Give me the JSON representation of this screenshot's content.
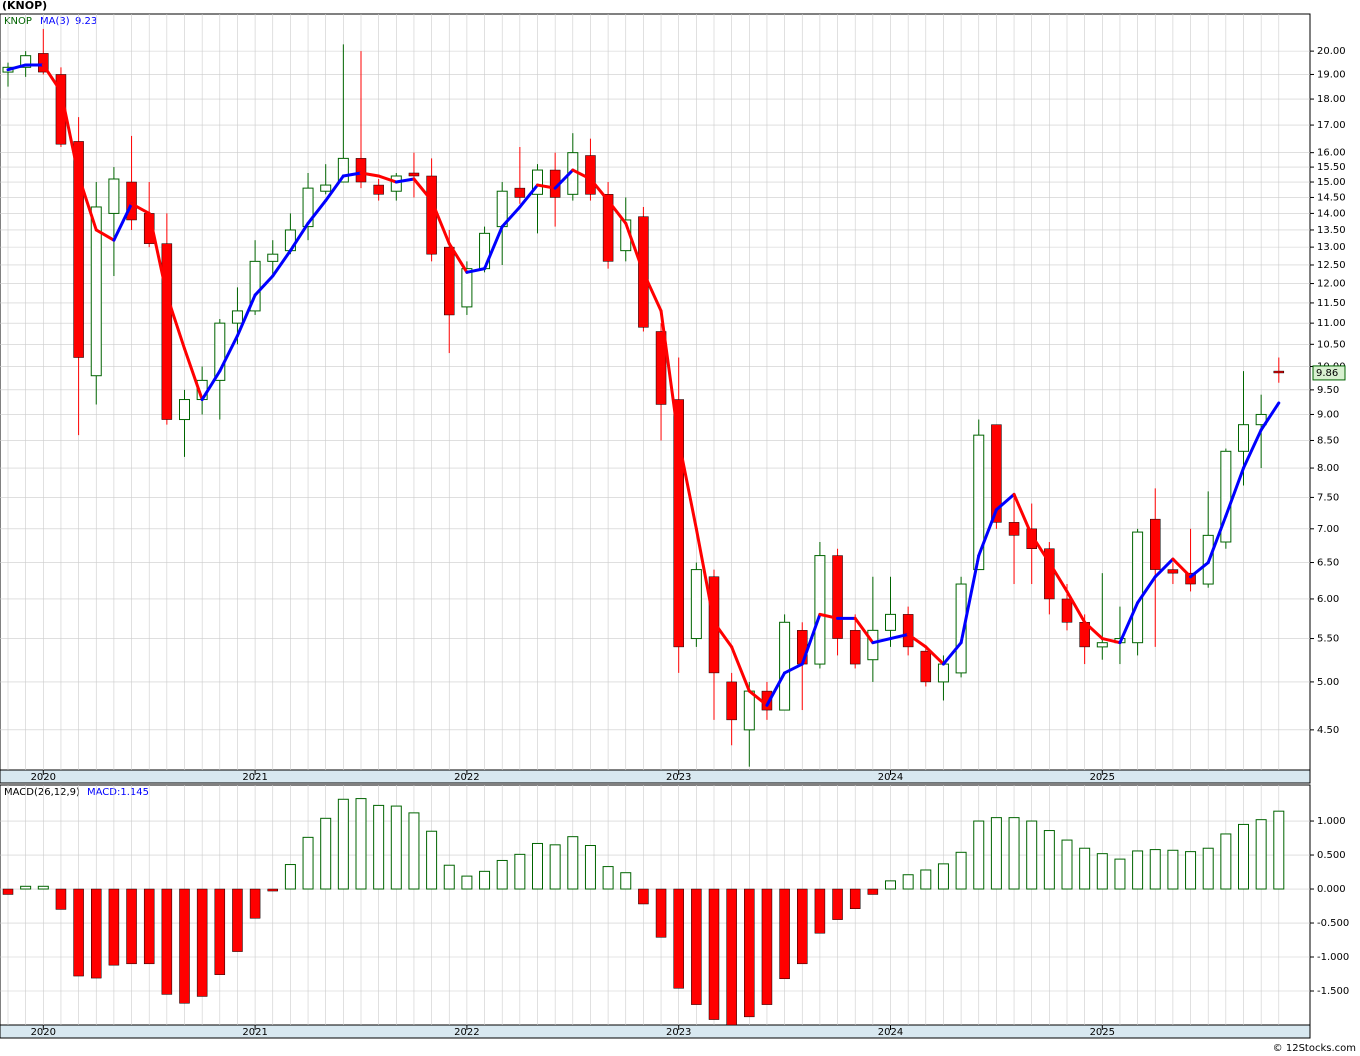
{
  "chart_data": [
    {
      "type": "candlestick",
      "title": "(KNOP)",
      "symbol": "KNOP",
      "ma_name": "MA(3)",
      "ma_value": 9.23,
      "last_price": 9.86,
      "categories": [
        null,
        null,
        "2020",
        null,
        null,
        null,
        null,
        null,
        null,
        null,
        null,
        null,
        null,
        null,
        "2021",
        null,
        null,
        null,
        null,
        null,
        null,
        null,
        null,
        null,
        null,
        null,
        "2022",
        null,
        null,
        null,
        null,
        null,
        null,
        null,
        null,
        null,
        null,
        null,
        "2023",
        null,
        null,
        null,
        null,
        null,
        null,
        null,
        null,
        null,
        null,
        null,
        "2024",
        null,
        null,
        null,
        null,
        null,
        null,
        null,
        null,
        null,
        null,
        null,
        "2025",
        null,
        null,
        null,
        null,
        null,
        null,
        null,
        null,
        null,
        null
      ],
      "open": [
        19.1,
        19.3,
        19.9,
        19.0,
        16.4,
        9.8,
        14.0,
        15.0,
        14.0,
        13.1,
        8.9,
        9.3,
        9.7,
        11.0,
        11.3,
        12.6,
        12.9,
        13.6,
        14.7,
        15.0,
        15.8,
        14.9,
        14.7,
        15.3,
        15.2,
        13.0,
        11.4,
        12.4,
        13.6,
        14.8,
        14.6,
        15.4,
        14.6,
        15.9,
        14.6,
        12.9,
        13.9,
        10.8,
        9.3,
        5.5,
        6.3,
        5.0,
        4.5,
        4.9,
        4.7,
        5.6,
        5.2,
        6.6,
        5.6,
        5.25,
        5.6,
        5.8,
        5.35,
        5.0,
        5.1,
        6.4,
        8.8,
        7.1,
        7.0,
        6.7,
        6.0,
        5.7,
        5.4,
        5.45,
        5.45,
        7.15,
        6.4,
        6.35,
        6.2,
        6.8,
        8.3,
        8.8,
        9.9
      ],
      "high": [
        19.5,
        20.0,
        21.0,
        19.3,
        17.3,
        15.0,
        15.5,
        16.6,
        15.0,
        14.0,
        9.5,
        10.0,
        11.1,
        11.9,
        13.2,
        13.2,
        14.0,
        15.3,
        15.6,
        20.3,
        20.0,
        15.1,
        15.3,
        16.0,
        15.8,
        13.5,
        12.6,
        13.6,
        15.0,
        16.2,
        15.6,
        16.0,
        16.7,
        16.5,
        15.0,
        14.5,
        14.2,
        11.0,
        10.2,
        6.5,
        6.4,
        5.1,
        5.0,
        5.0,
        5.8,
        5.7,
        6.8,
        6.7,
        5.8,
        6.3,
        6.3,
        5.9,
        5.4,
        5.3,
        6.3,
        8.9,
        8.8,
        7.5,
        7.4,
        6.8,
        6.2,
        5.8,
        6.35,
        5.9,
        7.0,
        7.65,
        6.5,
        7.0,
        7.6,
        8.35,
        9.9,
        9.4,
        10.2
      ],
      "low": [
        18.5,
        18.9,
        19.0,
        16.2,
        8.6,
        9.2,
        12.2,
        13.5,
        13.0,
        8.8,
        8.2,
        9.0,
        8.9,
        10.5,
        11.2,
        12.2,
        12.8,
        13.2,
        14.6,
        15.0,
        14.8,
        14.4,
        14.4,
        14.5,
        12.6,
        10.3,
        11.2,
        12.3,
        12.5,
        14.3,
        13.4,
        13.6,
        14.4,
        14.4,
        12.4,
        12.6,
        10.8,
        8.5,
        5.1,
        5.4,
        4.6,
        4.35,
        4.15,
        4.6,
        4.7,
        4.7,
        5.15,
        5.3,
        5.15,
        5.0,
        5.4,
        5.3,
        4.95,
        4.8,
        5.05,
        6.4,
        7.0,
        6.2,
        6.2,
        5.8,
        5.6,
        5.2,
        5.25,
        5.2,
        5.3,
        5.4,
        6.2,
        6.1,
        6.15,
        6.7,
        7.7,
        8.0,
        9.65
      ],
      "close": [
        19.3,
        19.8,
        19.1,
        16.3,
        10.2,
        14.2,
        15.1,
        13.8,
        13.1,
        8.9,
        9.3,
        9.7,
        11.0,
        11.3,
        12.6,
        12.8,
        13.5,
        14.8,
        14.9,
        15.8,
        15.0,
        14.6,
        15.2,
        15.2,
        12.8,
        11.2,
        12.4,
        13.4,
        14.7,
        14.5,
        15.4,
        14.5,
        16.0,
        14.6,
        12.6,
        13.8,
        10.9,
        9.2,
        5.4,
        6.4,
        5.1,
        4.6,
        4.9,
        4.7,
        5.7,
        5.2,
        6.6,
        5.5,
        5.2,
        5.6,
        5.8,
        5.4,
        5.0,
        5.2,
        6.2,
        8.6,
        7.1,
        6.9,
        6.7,
        6.0,
        5.7,
        5.4,
        5.45,
        5.5,
        6.95,
        6.4,
        6.35,
        6.2,
        6.9,
        8.3,
        8.8,
        9.0,
        9.86
      ],
      "ma": [
        19.2,
        19.4,
        19.4,
        18.3,
        15.2,
        13.5,
        13.2,
        14.3,
        14.0,
        11.7,
        10.4,
        9.3,
        9.9,
        10.7,
        11.7,
        12.2,
        12.9,
        13.7,
        14.4,
        15.2,
        15.3,
        15.2,
        15.0,
        15.1,
        14.4,
        13.1,
        12.3,
        12.4,
        13.6,
        14.2,
        14.9,
        14.8,
        15.4,
        15.1,
        14.4,
        13.7,
        12.3,
        11.3,
        8.5,
        7.0,
        5.7,
        5.4,
        4.9,
        4.75,
        5.1,
        5.2,
        5.8,
        5.75,
        5.75,
        5.45,
        5.5,
        5.55,
        5.4,
        5.2,
        5.45,
        6.6,
        7.3,
        7.55,
        6.9,
        6.5,
        6.1,
        5.7,
        5.5,
        5.45,
        5.95,
        6.3,
        6.55,
        6.3,
        6.5,
        7.2,
        8.0,
        8.7,
        9.23
      ],
      "up_color": "#006400",
      "down_color": "#ff0000",
      "ma_up_color": "#0000ff",
      "ma_down_color": "#ff0000",
      "log_scale": true,
      "grid": true,
      "ylim": [
        4.12,
        21.7
      ],
      "yticks": [
        {
          "value": 4.5,
          "label": "4.50"
        },
        {
          "value": 5,
          "label": "5.00"
        },
        {
          "value": 5.5,
          "label": "5.50"
        },
        {
          "value": 6,
          "label": "6.00"
        },
        {
          "value": 6.5,
          "label": "6.50"
        },
        {
          "value": 7,
          "label": "7.00"
        },
        {
          "value": 7.5,
          "label": "7.50"
        },
        {
          "value": 8,
          "label": "8.00"
        },
        {
          "value": 8.5,
          "label": "8.50"
        },
        {
          "value": 9,
          "label": "9.00"
        },
        {
          "value": 9.5,
          "label": "9.50"
        },
        {
          "value": 10,
          "label": "10.00"
        },
        {
          "value": 10.5,
          "label": "10.50"
        },
        {
          "value": 11,
          "label": "11.00"
        },
        {
          "value": 11.5,
          "label": "11.50"
        },
        {
          "value": 12,
          "label": "12.00"
        },
        {
          "value": 12.5,
          "label": "12.50"
        },
        {
          "value": 13,
          "label": "13.00"
        },
        {
          "value": 13.5,
          "label": "13.50"
        },
        {
          "value": 14,
          "label": "14.00"
        },
        {
          "value": 14.5,
          "label": "14.50"
        },
        {
          "value": 15,
          "label": "15.00"
        },
        {
          "value": 15.5,
          "label": "15.50"
        },
        {
          "value": 16,
          "label": "16.00"
        },
        {
          "value": 17,
          "label": "17.00"
        },
        {
          "value": 18,
          "label": "18.00"
        },
        {
          "value": 19,
          "label": "19.00"
        },
        {
          "value": 20,
          "label": "20.00"
        }
      ]
    },
    {
      "type": "macd",
      "title": "MACD(26,12,9)",
      "value_title": "MACD:1.145",
      "categories": [
        null,
        null,
        "2020",
        null,
        null,
        null,
        null,
        null,
        null,
        null,
        null,
        null,
        null,
        null,
        "2021",
        null,
        null,
        null,
        null,
        null,
        null,
        null,
        null,
        null,
        null,
        null,
        "2022",
        null,
        null,
        null,
        null,
        null,
        null,
        null,
        null,
        null,
        null,
        null,
        "2023",
        null,
        null,
        null,
        null,
        null,
        null,
        null,
        null,
        null,
        null,
        null,
        "2024",
        null,
        null,
        null,
        null,
        null,
        null,
        null,
        null,
        null,
        null,
        null,
        "2025",
        null,
        null,
        null,
        null,
        null,
        null,
        null,
        null,
        null,
        null
      ],
      "values": [
        -0.08,
        0.04,
        0.04,
        -0.3,
        -1.28,
        -1.31,
        -1.12,
        -1.1,
        -1.1,
        -1.55,
        -1.68,
        -1.58,
        -1.26,
        -0.92,
        -0.43,
        -0.03,
        0.36,
        0.76,
        1.04,
        1.32,
        1.33,
        1.23,
        1.22,
        1.12,
        0.85,
        0.35,
        0.19,
        0.26,
        0.42,
        0.51,
        0.67,
        0.65,
        0.77,
        0.64,
        0.33,
        0.24,
        -0.22,
        -0.71,
        -1.46,
        -1.7,
        -1.92,
        -2.0,
        -1.88,
        -1.7,
        -1.32,
        -1.1,
        -0.65,
        -0.45,
        -0.29,
        -0.08,
        0.12,
        0.21,
        0.28,
        0.37,
        0.54,
        1.0,
        1.05,
        1.05,
        1.0,
        0.86,
        0.72,
        0.6,
        0.52,
        0.44,
        0.56,
        0.58,
        0.57,
        0.55,
        0.6,
        0.81,
        0.95,
        1.02,
        1.145
      ],
      "up_color": "#006400",
      "down_color": "#ff0000",
      "grid": true,
      "ylim": [
        -2.0,
        1.53
      ],
      "yticks": [
        {
          "value": -1.5,
          "label": "-1.500"
        },
        {
          "value": -1,
          "label": "-1.000"
        },
        {
          "value": -0.5,
          "label": "-0.500"
        },
        {
          "value": 0,
          "label": "0.000"
        },
        {
          "value": 0.5,
          "label": "0.500"
        },
        {
          "value": 1,
          "label": "1.000"
        }
      ]
    }
  ],
  "credit": "© 12Stocks.com"
}
